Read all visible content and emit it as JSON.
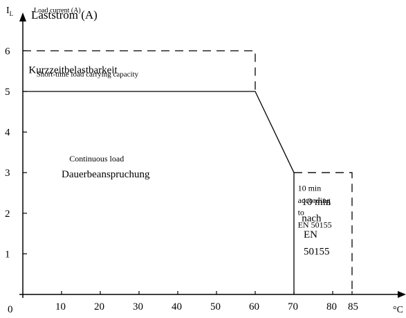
{
  "chart_data": {
    "type": "line",
    "title": "",
    "ylabel_symbol": "I",
    "ylabel_symbol_sub": "L",
    "ylabel_de": "Laststrom (A)",
    "ylabel_en": "Load current (A)",
    "xlabel_unit": "°C",
    "x_ticks": [
      {
        "value": 0,
        "label": "0"
      },
      {
        "value": 10,
        "label": "10"
      },
      {
        "value": 20,
        "label": "20"
      },
      {
        "value": 30,
        "label": "30"
      },
      {
        "value": 40,
        "label": "40"
      },
      {
        "value": 50,
        "label": "50"
      },
      {
        "value": 60,
        "label": "60"
      },
      {
        "value": 70,
        "label": "70"
      },
      {
        "value": 80,
        "label": "80"
      },
      {
        "value": 85,
        "label": "85"
      }
    ],
    "y_ticks": [
      {
        "value": 1,
        "label": "1"
      },
      {
        "value": 2,
        "label": "2"
      },
      {
        "value": 3,
        "label": "3"
      },
      {
        "value": 4,
        "label": "4"
      },
      {
        "value": 5,
        "label": "5"
      },
      {
        "value": 6,
        "label": "6"
      }
    ],
    "xlim": [
      0,
      92
    ],
    "ylim": [
      0,
      7
    ],
    "grid": false,
    "series": [
      {
        "name": "Continuous load",
        "style": "solid",
        "x": [
          0,
          60,
          70,
          70
        ],
        "y": [
          5,
          5,
          3,
          0
        ]
      },
      {
        "name": "Short-time load carrying capacity",
        "style": "dashed",
        "x": [
          0,
          60,
          60
        ],
        "y": [
          6,
          6,
          5
        ]
      },
      {
        "name": "10 min according to EN 50155",
        "style": "dashed",
        "x": [
          70,
          85,
          85
        ],
        "y": [
          3,
          3,
          0
        ]
      }
    ],
    "annotations": [
      {
        "id": "short_time_de",
        "text": "Kurzzeitbelastbarkeit",
        "x": 1.5,
        "y": 5.45,
        "size": 15
      },
      {
        "id": "short_time_en",
        "text": "Short-time load carrying capacity",
        "x": 3.5,
        "y": 5.37,
        "size": 11
      },
      {
        "id": "continuous_en",
        "text": "Continuous load",
        "x": 12,
        "y": 3.28,
        "size": 12
      },
      {
        "id": "continuous_de",
        "text": "Dauerbeanspruchung",
        "x": 10,
        "y": 2.88,
        "size": 15
      },
      {
        "id": "ten_min_en_1",
        "text": "10 min",
        "x": 71,
        "y": 2.55,
        "size": 12
      },
      {
        "id": "ten_min_en_2",
        "text": "according",
        "x": 71,
        "y": 2.25,
        "size": 12
      },
      {
        "id": "ten_min_en_3",
        "text": "to",
        "x": 71,
        "y": 1.95,
        "size": 12
      },
      {
        "id": "ten_min_en_4",
        "text": "EN 50155",
        "x": 71,
        "y": 1.65,
        "size": 12
      },
      {
        "id": "ten_min_de_1",
        "text": "10 min",
        "x": 72,
        "y": 2.2,
        "size": 15
      },
      {
        "id": "ten_min_de_2",
        "text": "nach",
        "x": 72,
        "y": 1.8,
        "size": 15
      },
      {
        "id": "ten_min_de_3",
        "text": "EN",
        "x": 72.5,
        "y": 1.4,
        "size": 15
      },
      {
        "id": "ten_min_de_4",
        "text": "50155",
        "x": 72.5,
        "y": 0.98,
        "size": 15
      }
    ]
  }
}
